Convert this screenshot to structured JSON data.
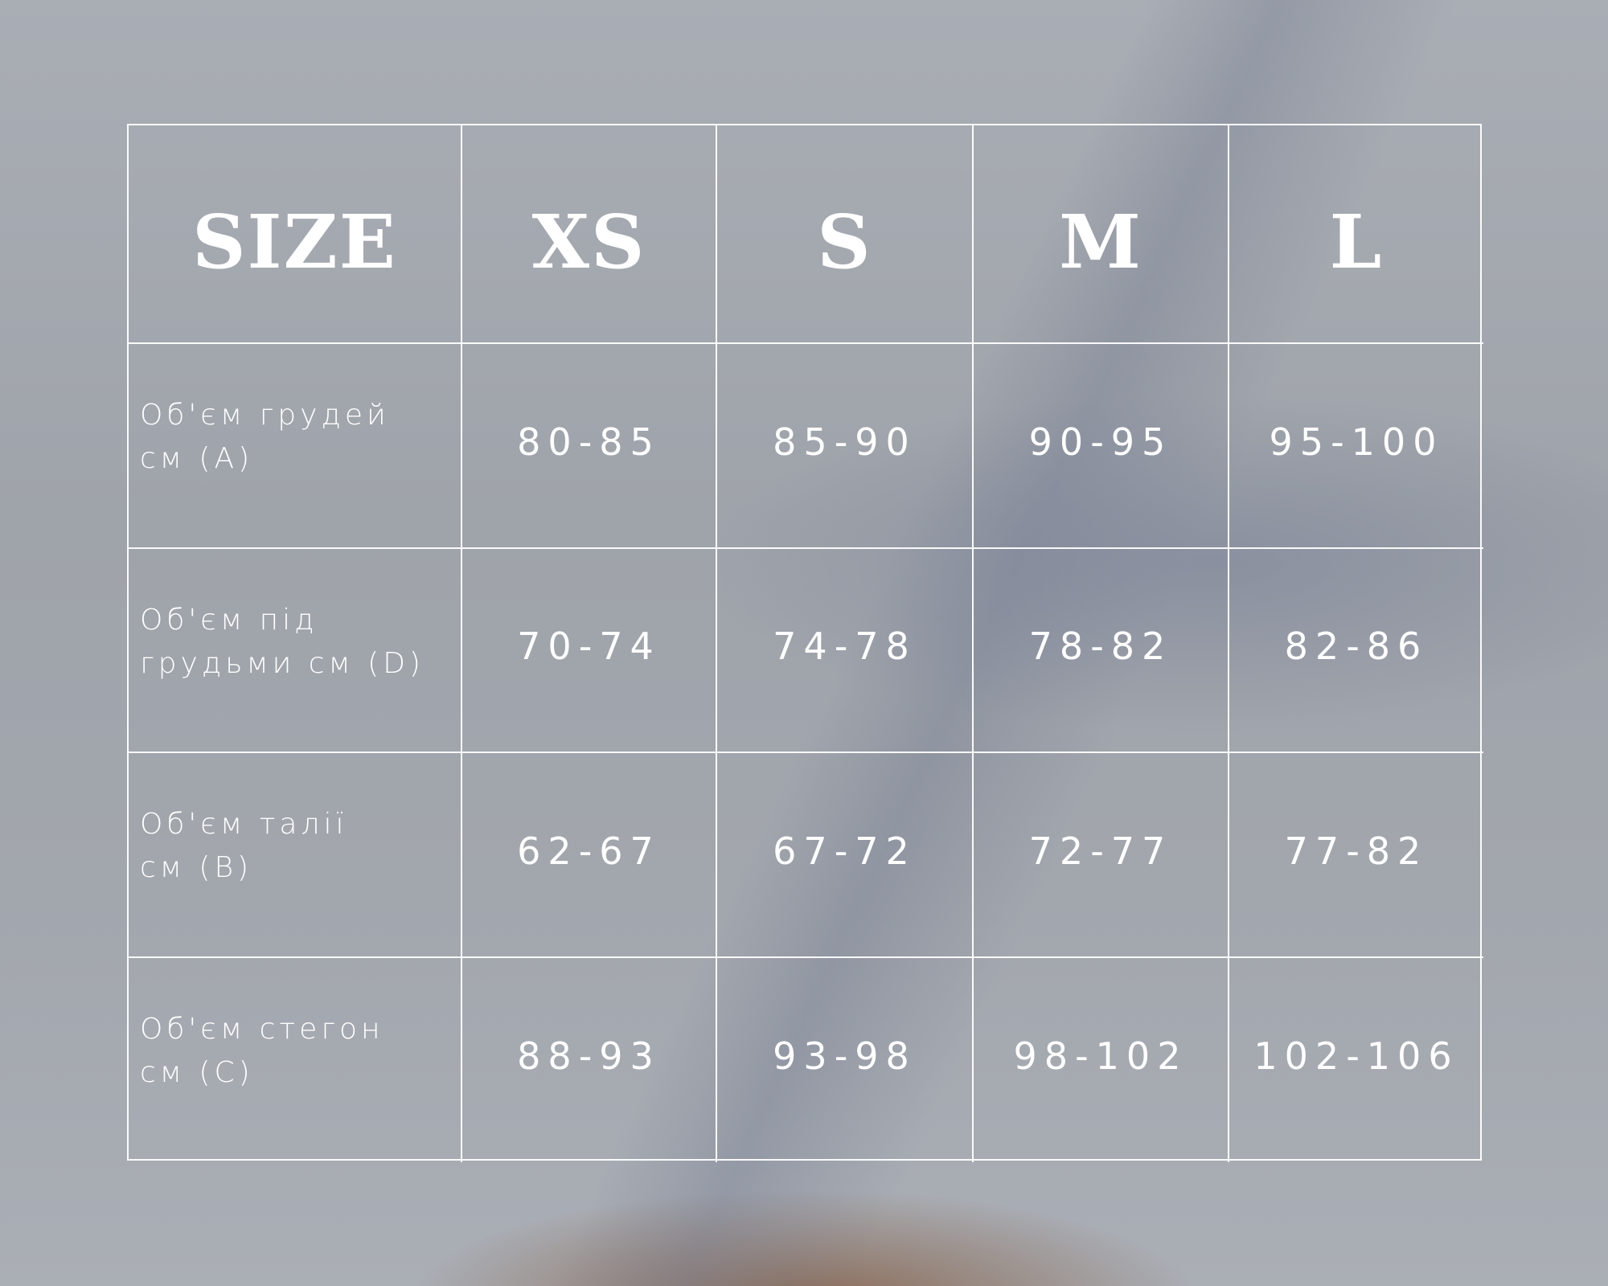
{
  "table": {
    "headers": [
      "SIZE",
      "XS",
      "S",
      "M",
      "L"
    ],
    "rows": [
      {
        "label_line1": "Об'єм грудей",
        "label_line2": "см (A)",
        "values": [
          "80-85",
          "85-90",
          "90-95",
          "95-100"
        ]
      },
      {
        "label_line1": "Об'єм під",
        "label_line2": "грудьми см (D)",
        "values": [
          "70-74",
          "74-78",
          "78-82",
          "82-86"
        ]
      },
      {
        "label_line1": "Об'єм талії",
        "label_line2": "см (B)",
        "values": [
          "62-67",
          "67-72",
          "72-77",
          "77-82"
        ]
      },
      {
        "label_line1": "Об'єм стегон",
        "label_line2": "см (C)",
        "values": [
          "88-93",
          "93-98",
          "98-102",
          "102-106"
        ]
      }
    ]
  },
  "colors": {
    "grid_lines": "#ffffff",
    "text": "#ffffff",
    "background": "#a2a6ad"
  }
}
